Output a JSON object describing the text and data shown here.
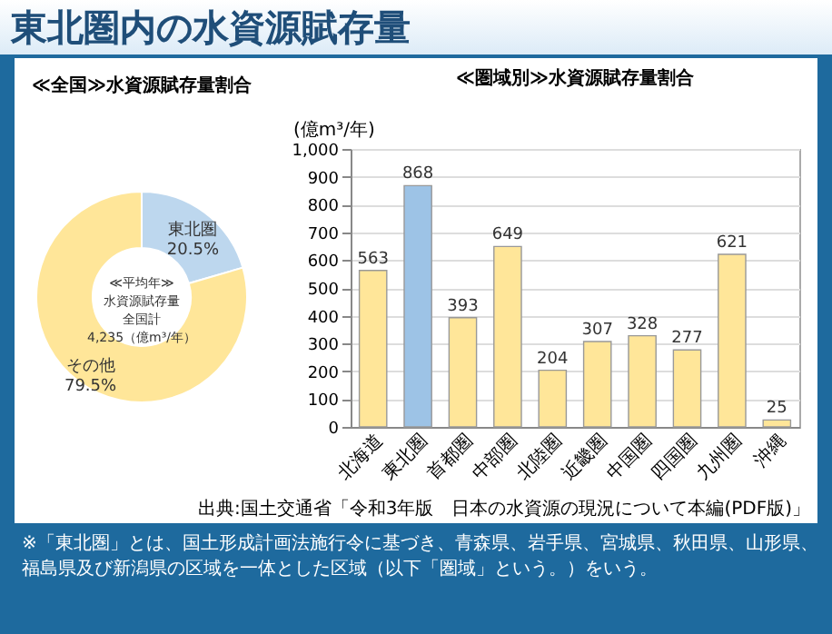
{
  "chart_data": [
    {
      "type": "donut",
      "title": "東北圏内の水資源賦存量",
      "subtitle": "≪全国≫水資源賦存量割合",
      "categories": [
        "東北圏",
        "その他"
      ],
      "values": [
        20.5,
        79.5
      ],
      "colors": [
        "#bdd7ee",
        "#ffe699"
      ],
      "value_labels": [
        "20.5%",
        "79.5%"
      ],
      "annotations": [
        "≪平均年≫",
        "水資源賦存量",
        "全国計",
        "4,235（億m³/年）"
      ]
    },
    {
      "type": "bar",
      "title": "≪圏域別≫水資源賦存量割合",
      "ylabel": "(億m³/年)",
      "categories": [
        "北海道",
        "東北圏",
        "首都圏",
        "中部圏",
        "北陸圏",
        "近畿圏",
        "中国圏",
        "四国圏",
        "九州圏",
        "沖縄"
      ],
      "values": [
        563,
        868,
        393,
        649,
        204,
        307,
        328,
        277,
        621,
        25
      ],
      "colors": [
        "#ffe699",
        "#9dc3e6",
        "#ffe699",
        "#ffe699",
        "#ffe699",
        "#ffe699",
        "#ffe699",
        "#ffe699",
        "#ffe699",
        "#ffe699"
      ],
      "ylim": [
        0,
        1000
      ],
      "yticks": [
        0,
        100,
        200,
        300,
        400,
        500,
        600,
        700,
        800,
        900,
        {
          "value": 1000,
          "label": "1,000"
        }
      ],
      "grid": "y",
      "data_labels": true,
      "annotations": [
        "出典:国土交通省「令和3年版　日本の水資源の現況について本編(PDF版)」",
        "※「東北圏」とは、国土形成計画法施行令に基づき、青森県、岩手県、宮城県、秋田県、山形県、福島県及び新潟県の区域を一体とした区域（以下「圏域」という。）をいう。"
      ]
    }
  ]
}
